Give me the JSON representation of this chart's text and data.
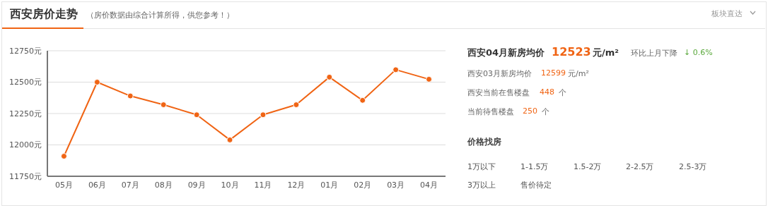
{
  "chart_data": {
    "type": "line",
    "title": "西安房价走势",
    "subtitle": "（房价数据由综合计算所得，供您参考！）",
    "categories": [
      "05月",
      "06月",
      "07月",
      "08月",
      "09月",
      "10月",
      "11月",
      "12月",
      "01月",
      "02月",
      "03月",
      "04月"
    ],
    "series": [
      {
        "color": "#f06414",
        "values": [
          11910,
          12500,
          12390,
          12320,
          12240,
          12040,
          12240,
          12320,
          12540,
          12355,
          12599,
          12523
        ]
      }
    ],
    "ylim": [
      11750,
      12750
    ],
    "yticks": [
      {
        "value": 11750,
        "label": "11750元"
      },
      {
        "value": 12000,
        "label": "12000元"
      },
      {
        "value": 12250,
        "label": "12250元"
      },
      {
        "value": 12500,
        "label": "12500元"
      },
      {
        "value": 12750,
        "label": "12750元"
      }
    ],
    "grid": "y",
    "marker": "circle",
    "line_style": "solid",
    "annotations": [
      "西安04月新房均价",
      "12523",
      "元/m²",
      "环比上月下降",
      "↓ 0.6%",
      "西安03月新房均价",
      "12599",
      "元/m²",
      "西安当前在售楼盘",
      "448",
      "个",
      "当前待售楼盘",
      "250",
      "个",
      "价格找房",
      "1万以下",
      "1-1.5万",
      "1.5-2万",
      "2-2.5万",
      "2.5-3万",
      "3万以上",
      "售价待定",
      "板块直达"
    ]
  }
}
